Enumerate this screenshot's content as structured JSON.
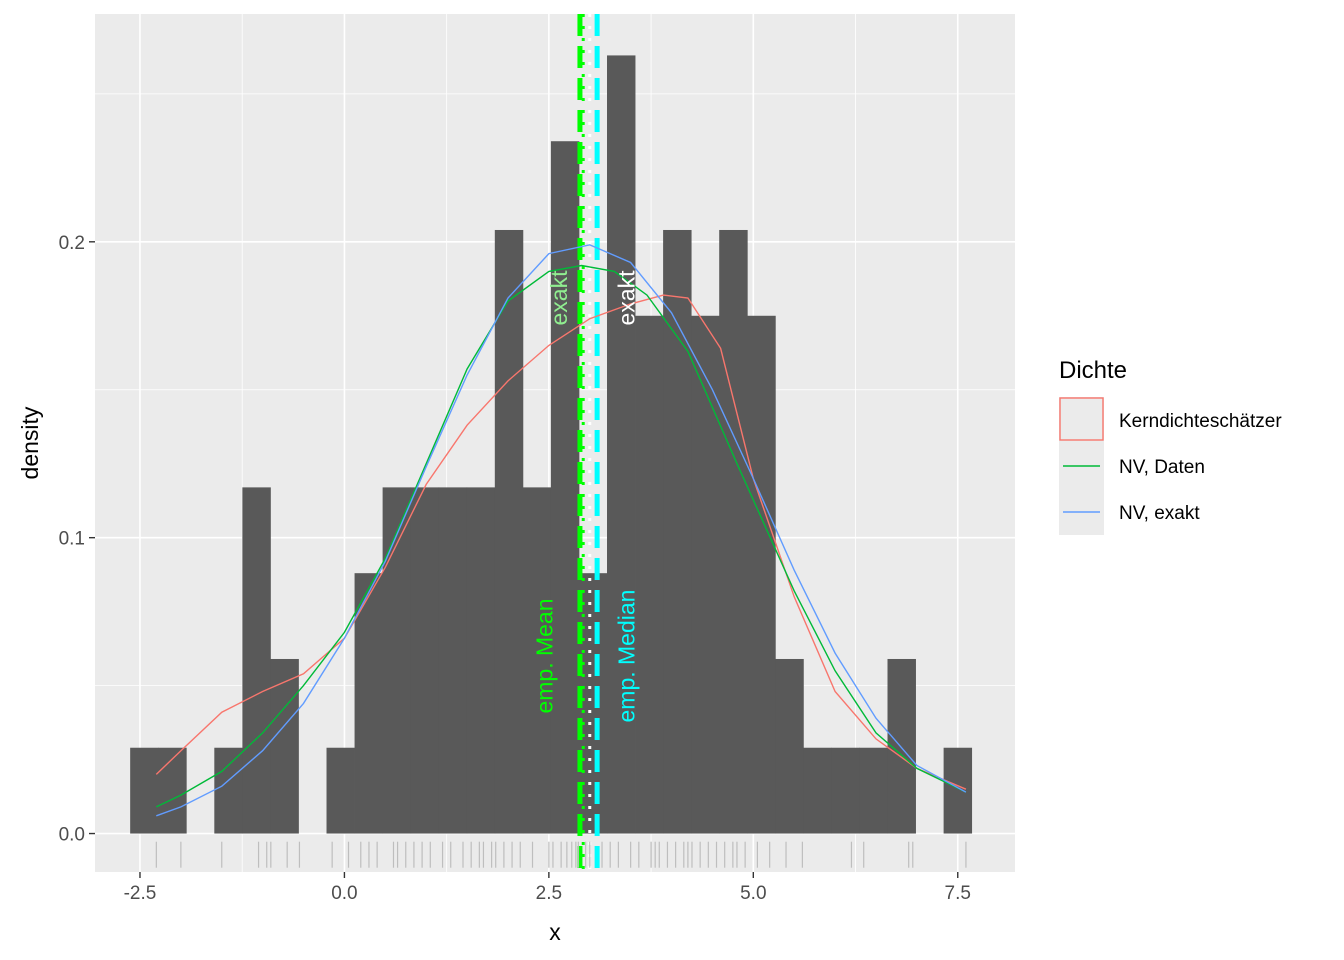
{
  "chart_data": {
    "type": "bar",
    "xlabel": "x",
    "ylabel": "density",
    "xlim": [
      -3.05,
      8.2
    ],
    "ylim": [
      -0.013,
      0.277
    ],
    "x_ticks": [
      -2.5,
      0.0,
      2.5,
      5.0,
      7.5
    ],
    "x_tick_labels": [
      "-2.5",
      "0.0",
      "2.5",
      "5.0",
      "7.5"
    ],
    "y_ticks": [
      0.0,
      0.1,
      0.2
    ],
    "y_tick_labels": [
      "0.0",
      "0.1",
      "0.2"
    ],
    "grid": true,
    "legend_position": "right",
    "bin_width": 0.343,
    "histogram": {
      "bin_starts": [
        -2.62,
        -2.277,
        -1.934,
        -1.591,
        -1.248,
        -0.905,
        -0.562,
        -0.219,
        0.124,
        0.467,
        0.81,
        1.153,
        1.496,
        1.839,
        2.182,
        2.525,
        2.868,
        3.211,
        3.554,
        3.897,
        4.24,
        4.583,
        4.926,
        5.269,
        5.612,
        5.955,
        6.298,
        6.641,
        6.984,
        7.327
      ],
      "densities": [
        0.029,
        0.029,
        0.0,
        0.029,
        0.117,
        0.059,
        0.0,
        0.029,
        0.088,
        0.117,
        0.117,
        0.117,
        0.117,
        0.204,
        0.117,
        0.234,
        0.088,
        0.263,
        0.175,
        0.204,
        0.175,
        0.204,
        0.175,
        0.059,
        0.029,
        0.029,
        0.029,
        0.059,
        0.0,
        0.029
      ],
      "color": "#595959"
    },
    "series": [
      {
        "name": "Kerndichteschätzer",
        "color": "#F8766D",
        "x": [
          -2.3,
          -2.0,
          -1.5,
          -1.0,
          -0.5,
          0.0,
          0.5,
          1.0,
          1.5,
          2.0,
          2.5,
          3.0,
          3.5,
          3.9,
          4.2,
          4.6,
          5.0,
          5.5,
          6.0,
          6.5,
          7.0,
          7.6
        ],
        "y": [
          0.02,
          0.028,
          0.041,
          0.048,
          0.054,
          0.066,
          0.09,
          0.118,
          0.138,
          0.153,
          0.165,
          0.174,
          0.179,
          0.182,
          0.181,
          0.164,
          0.12,
          0.08,
          0.048,
          0.032,
          0.022,
          0.015
        ]
      },
      {
        "name": "NV, Daten",
        "color": "#00BA38",
        "x": [
          -2.3,
          -2.0,
          -1.5,
          -1.0,
          -0.5,
          0.0,
          0.5,
          1.0,
          1.5,
          2.0,
          2.5,
          2.9,
          3.3,
          3.7,
          4.2,
          4.8,
          5.5,
          6.0,
          6.5,
          7.0,
          7.6
        ],
        "y": [
          0.009,
          0.013,
          0.021,
          0.034,
          0.05,
          0.068,
          0.093,
          0.125,
          0.157,
          0.18,
          0.19,
          0.192,
          0.19,
          0.182,
          0.163,
          0.125,
          0.082,
          0.055,
          0.034,
          0.022,
          0.014
        ]
      },
      {
        "name": "NV, exakt",
        "color": "#619CFF",
        "x": [
          -2.3,
          -2.0,
          -1.5,
          -1.0,
          -0.5,
          0.0,
          0.5,
          1.0,
          1.5,
          2.0,
          2.5,
          3.0,
          3.5,
          4.0,
          4.5,
          5.0,
          5.5,
          6.0,
          6.5,
          7.0,
          7.6
        ],
        "y": [
          0.006,
          0.009,
          0.016,
          0.028,
          0.044,
          0.066,
          0.092,
          0.124,
          0.155,
          0.181,
          0.196,
          0.199,
          0.193,
          0.176,
          0.15,
          0.12,
          0.089,
          0.061,
          0.039,
          0.023,
          0.014
        ]
      }
    ],
    "vlines": [
      {
        "name": "emp. Mean",
        "x": 2.88,
        "color": "#00FF00",
        "dash": "dashed"
      },
      {
        "name": "emp. Median",
        "x": 3.09,
        "color": "#00FFFF",
        "dash": "dashed"
      },
      {
        "x": 2.92,
        "color": "#00FF00",
        "dash": "dotted"
      },
      {
        "x": 3.0,
        "color": "#FFFFFF",
        "dash": "dotted"
      }
    ],
    "annotations": [
      {
        "text": "emp. Mean",
        "x": 2.47,
        "y": 0.06,
        "color": "#00FF00",
        "angle": -90
      },
      {
        "text": "emp. Median",
        "x": 3.47,
        "y": 0.06,
        "color": "#00FFFF",
        "angle": -90
      },
      {
        "text": "exakt",
        "x": 2.65,
        "y": 0.181,
        "color": "#90EE90",
        "angle": -90
      },
      {
        "text": "exakt",
        "x": 3.47,
        "y": 0.181,
        "color": "#FFFFFF",
        "angle": -90
      }
    ],
    "rug": [
      -2.3,
      -2.0,
      -1.5,
      -1.05,
      -0.95,
      -0.9,
      -0.7,
      -0.55,
      -0.15,
      0.05,
      0.2,
      0.3,
      0.4,
      0.6,
      0.65,
      0.75,
      0.85,
      0.95,
      1.05,
      1.2,
      1.3,
      1.45,
      1.55,
      1.65,
      1.7,
      1.8,
      1.85,
      1.95,
      2.05,
      2.15,
      2.3,
      2.5,
      2.55,
      2.65,
      2.72,
      2.78,
      2.83,
      2.86,
      2.95,
      3.0,
      3.15,
      3.25,
      3.35,
      3.5,
      3.6,
      3.75,
      3.8,
      3.85,
      3.95,
      4.05,
      4.15,
      4.2,
      4.25,
      4.35,
      4.45,
      4.55,
      4.65,
      4.75,
      4.8,
      4.9,
      5.05,
      5.2,
      5.4,
      5.6,
      6.2,
      6.35,
      6.9,
      6.95,
      7.6
    ],
    "legend": {
      "title": "Dichte",
      "items": [
        {
          "label": "Kerndichteschätzer",
          "color": "#F8766D",
          "key": "box"
        },
        {
          "label": "NV, Daten",
          "color": "#00BA38",
          "key": "line"
        },
        {
          "label": "NV, exakt",
          "color": "#619CFF",
          "key": "line"
        }
      ]
    }
  }
}
